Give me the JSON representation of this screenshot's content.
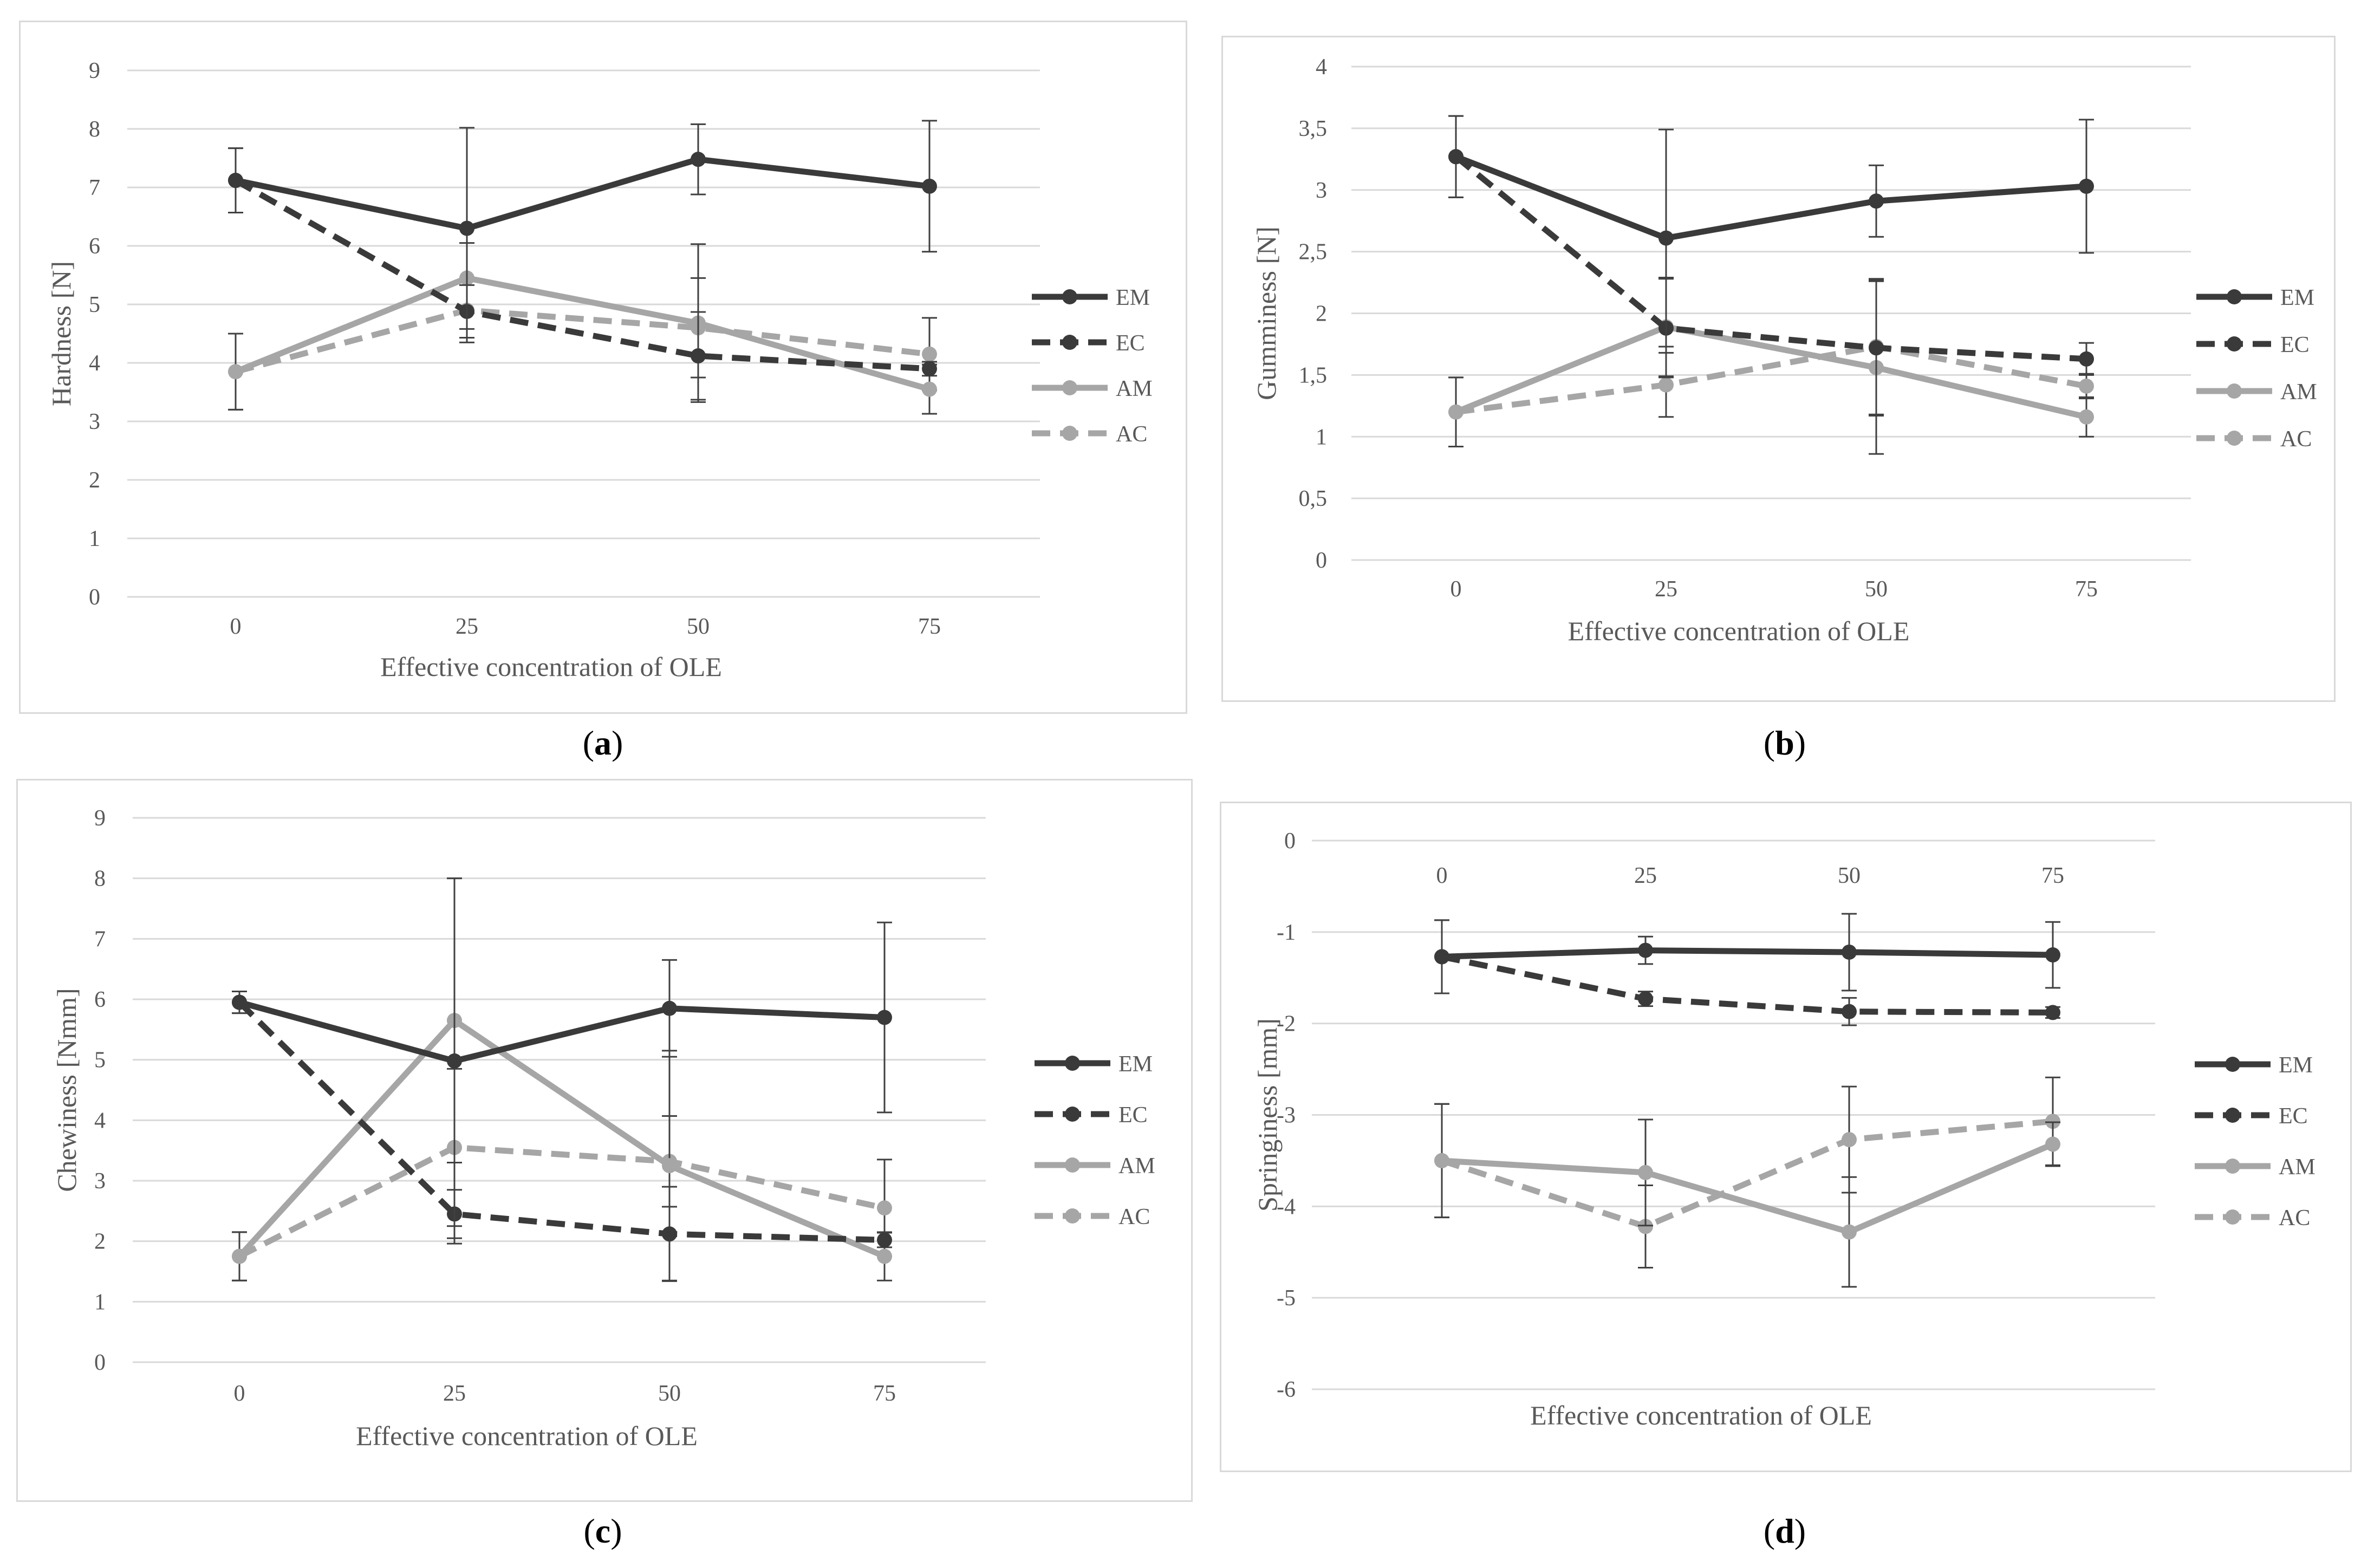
{
  "chart_data": [
    {
      "type": "line",
      "panel": "a",
      "ylabel": "Hardness [N]",
      "xlabel": "Effective concentration of OLE",
      "categories": [
        "0",
        "25",
        "50",
        "75"
      ],
      "ylim": [
        0,
        9
      ],
      "yticks": [
        "0",
        "1",
        "2",
        "3",
        "4",
        "5",
        "6",
        "7",
        "8",
        "9"
      ],
      "xaxis_position": "bottom",
      "series": [
        {
          "name": "EM",
          "values": [
            7.12,
            6.3,
            7.48,
            7.02
          ],
          "err": [
            0.55,
            1.72,
            0.6,
            1.12
          ]
        },
        {
          "name": "EC",
          "values": [
            7.12,
            4.88,
            4.12,
            3.9
          ],
          "err": [
            0.55,
            0.45,
            0.75,
            0.12
          ]
        },
        {
          "name": "AM",
          "values": [
            3.85,
            5.45,
            4.68,
            3.55
          ],
          "err": [
            0.65,
            0.6,
            1.35,
            0.42
          ]
        },
        {
          "name": "AC",
          "values": [
            3.85,
            4.9,
            4.6,
            4.15
          ],
          "err": [
            0.65,
            0.55,
            0.85,
            0.62
          ]
        }
      ]
    },
    {
      "type": "line",
      "panel": "b",
      "ylabel": "Gumminess [N]",
      "xlabel": "Effective concentration of OLE",
      "categories": [
        "0",
        "25",
        "50",
        "75"
      ],
      "ylim": [
        0,
        4
      ],
      "yticks": [
        "0",
        "0,5",
        "1",
        "1,5",
        "2",
        "2,5",
        "3",
        "3,5",
        "4"
      ],
      "xaxis_position": "bottom",
      "series": [
        {
          "name": "EM",
          "values": [
            3.27,
            2.61,
            2.91,
            3.03
          ],
          "err": [
            0.33,
            0.88,
            0.29,
            0.54
          ]
        },
        {
          "name": "EC",
          "values": [
            3.27,
            1.88,
            1.72,
            1.63
          ],
          "err": [
            0.33,
            0.4,
            0.55,
            0.13
          ]
        },
        {
          "name": "AM",
          "values": [
            1.2,
            1.89,
            1.56,
            1.16
          ],
          "err": [
            0.28,
            0.4,
            0.7,
            0.16
          ]
        },
        {
          "name": "AC",
          "values": [
            1.2,
            1.42,
            1.73,
            1.41
          ],
          "err": [
            0.28,
            0.26,
            0.55,
            0.1
          ]
        }
      ]
    },
    {
      "type": "line",
      "panel": "c",
      "ylabel": "Chewiness [Nmm]",
      "xlabel": "Effective concentration of OLE",
      "categories": [
        "0",
        "25",
        "50",
        "75"
      ],
      "ylim": [
        0,
        9
      ],
      "yticks": [
        "0",
        "1",
        "2",
        "3",
        "4",
        "5",
        "6",
        "7",
        "8",
        "9"
      ],
      "xaxis_position": "bottom",
      "series": [
        {
          "name": "EM",
          "values": [
            5.95,
            4.98,
            5.85,
            5.7
          ],
          "err": [
            0.18,
            3.02,
            0.8,
            1.57
          ]
        },
        {
          "name": "EC",
          "values": [
            5.95,
            2.45,
            2.12,
            2.02
          ],
          "err": [
            0.18,
            0.4,
            0.78,
            0.12
          ]
        },
        {
          "name": "AM",
          "values": [
            1.75,
            5.65,
            3.25,
            1.75
          ],
          "err": [
            0.4,
            2.35,
            1.9,
            0.4
          ]
        },
        {
          "name": "AC",
          "values": [
            1.75,
            3.55,
            3.32,
            2.55
          ],
          "err": [
            0.4,
            1.3,
            0.75,
            0.8
          ]
        }
      ]
    },
    {
      "type": "line",
      "panel": "d",
      "ylabel": "Springiness  [mm]",
      "xlabel": "Effective concentration of OLE",
      "categories": [
        "0",
        "25",
        "50",
        "75"
      ],
      "ylim": [
        -6,
        0
      ],
      "yticks": [
        "-6",
        "-5",
        "-4",
        "-3",
        "-2",
        "-1",
        "0"
      ],
      "xaxis_position": "top",
      "series": [
        {
          "name": "EM",
          "values": [
            -1.27,
            -1.2,
            -1.22,
            -1.25
          ],
          "err": [
            0.4,
            0.15,
            0.42,
            0.36
          ]
        },
        {
          "name": "EC",
          "values": [
            -1.27,
            -1.73,
            -1.87,
            -1.88
          ],
          "err": [
            0.4,
            0.08,
            0.15,
            0.06
          ]
        },
        {
          "name": "AM",
          "values": [
            -3.5,
            -3.63,
            -4.28,
            -3.32
          ],
          "err": [
            0.62,
            0.58,
            0.6,
            0.24
          ]
        },
        {
          "name": "AC",
          "values": [
            -3.5,
            -4.22,
            -3.27,
            -3.07
          ],
          "err": [
            0.62,
            0.45,
            0.58,
            0.48
          ]
        }
      ]
    }
  ],
  "panel_labels": [
    "a",
    "b",
    "c",
    "d"
  ],
  "styles": {
    "EM": {
      "color": "#3a3a3a",
      "dash": false
    },
    "EC": {
      "color": "#3a3a3a",
      "dash": true
    },
    "AM": {
      "color": "#a6a6a6",
      "dash": false
    },
    "AC": {
      "color": "#a6a6a6",
      "dash": true
    },
    "grid": "#d9d9d9",
    "text": "#595959"
  }
}
